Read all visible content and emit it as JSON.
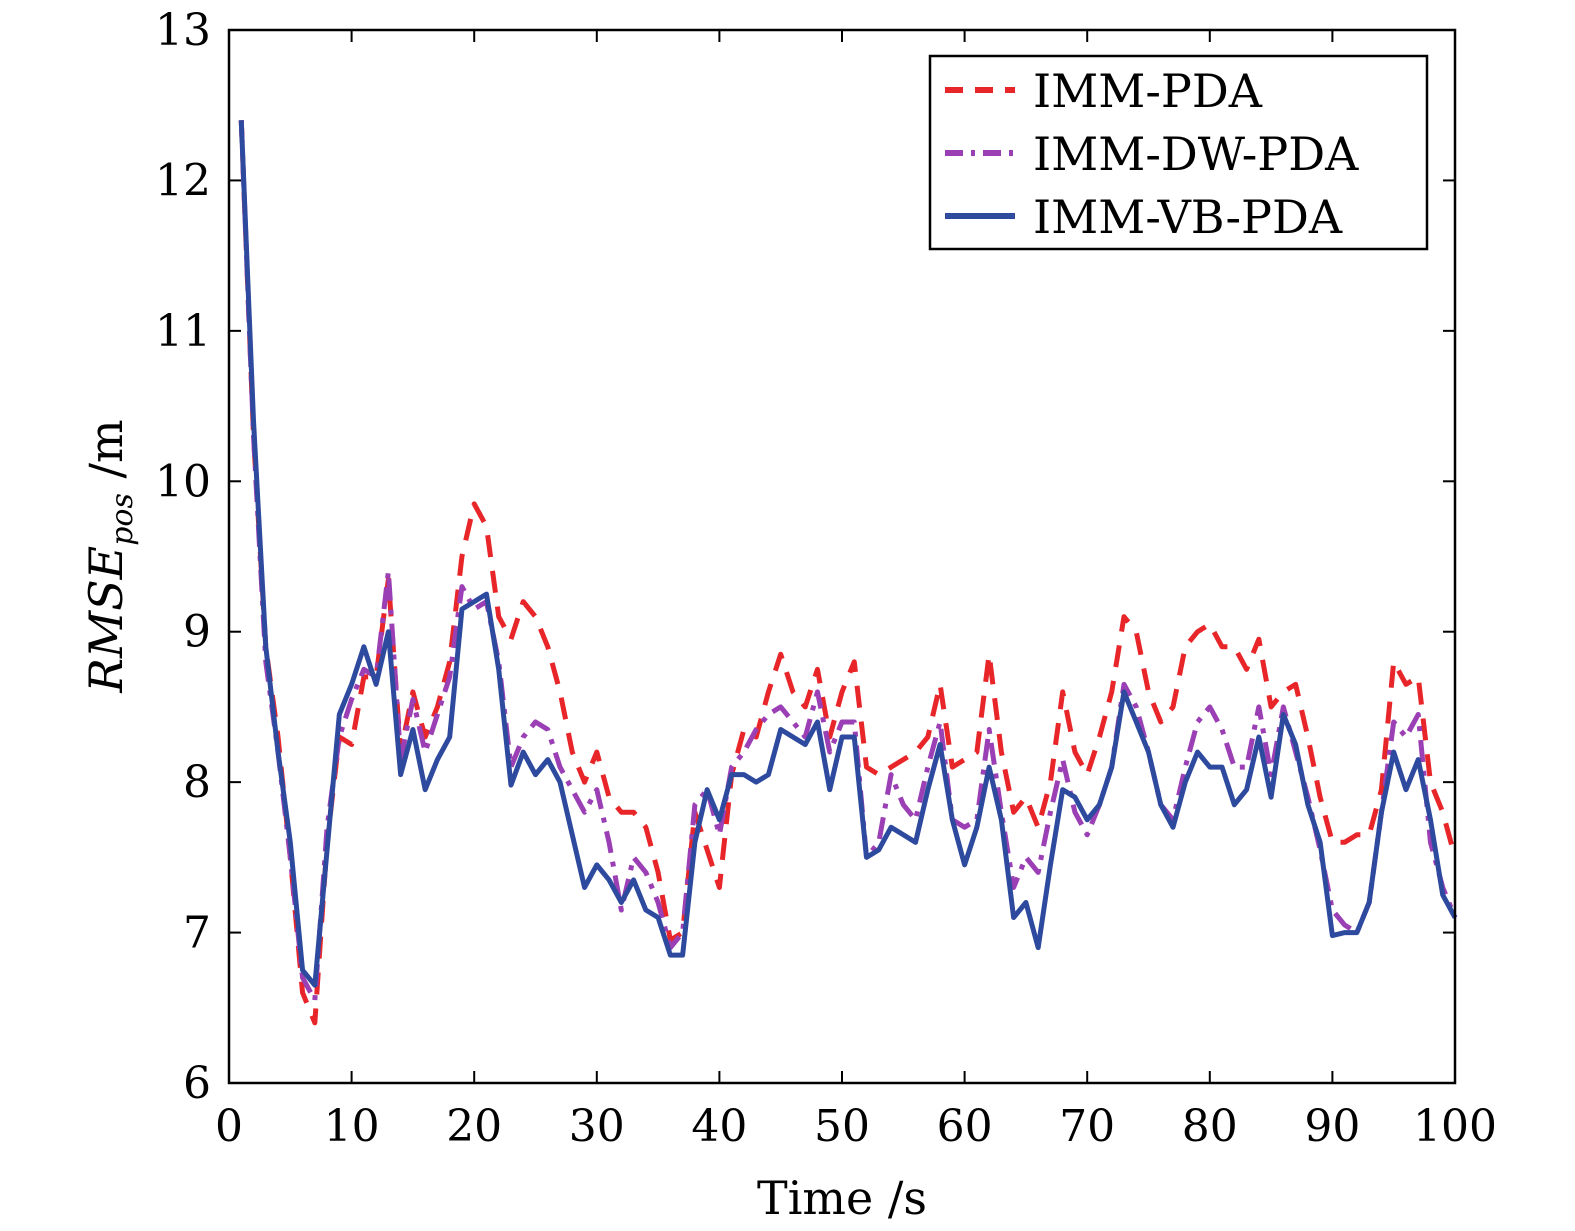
{
  "chart_data": {
    "type": "line",
    "xlabel": "Time /s",
    "ylabel_main": "RMSE",
    "ylabel_sub": "pos",
    "ylabel_unit": " /m",
    "xlim": [
      0,
      100
    ],
    "ylim": [
      6,
      13
    ],
    "xticks": [
      0,
      10,
      20,
      30,
      40,
      50,
      60,
      70,
      80,
      90,
      100
    ],
    "yticks": [
      6,
      7,
      8,
      9,
      10,
      11,
      12,
      13
    ],
    "grid": false,
    "legend_position": "top-right",
    "series": [
      {
        "name": "IMM-PDA",
        "color": "#e8262a",
        "style": "dashed",
        "x": [
          1,
          2,
          3,
          4,
          5,
          6,
          7,
          8,
          9,
          10,
          11,
          12,
          13,
          14,
          15,
          16,
          17,
          18,
          19,
          20,
          21,
          22,
          23,
          24,
          25,
          26,
          27,
          28,
          29,
          30,
          31,
          32,
          33,
          34,
          35,
          36,
          37,
          38,
          39,
          40,
          41,
          42,
          43,
          44,
          45,
          46,
          47,
          48,
          49,
          50,
          51,
          52,
          53,
          54,
          55,
          56,
          57,
          58,
          59,
          60,
          61,
          62,
          63,
          64,
          65,
          66,
          67,
          68,
          69,
          70,
          71,
          72,
          73,
          74,
          75,
          76,
          77,
          78,
          79,
          80,
          81,
          82,
          83,
          84,
          85,
          86,
          87,
          88,
          89,
          90,
          91,
          92,
          93,
          94,
          95,
          96,
          97,
          98,
          99,
          100
        ],
        "y": [
          12.4,
          10.3,
          8.9,
          8.3,
          7.5,
          6.6,
          6.4,
          7.6,
          8.3,
          8.25,
          8.7,
          8.7,
          9.35,
          8.2,
          8.6,
          8.3,
          8.5,
          8.8,
          9.5,
          9.85,
          9.7,
          9.1,
          8.95,
          9.2,
          9.1,
          8.9,
          8.6,
          8.2,
          8.0,
          8.2,
          7.9,
          7.8,
          7.8,
          7.7,
          7.4,
          6.95,
          7.0,
          7.8,
          7.55,
          7.3,
          8.05,
          8.35,
          8.3,
          8.6,
          8.85,
          8.6,
          8.5,
          8.75,
          8.3,
          8.6,
          8.8,
          8.1,
          8.05,
          8.1,
          8.15,
          8.2,
          8.3,
          8.65,
          8.1,
          8.15,
          8.2,
          8.85,
          8.2,
          7.8,
          7.9,
          7.7,
          8.0,
          8.6,
          8.2,
          8.05,
          8.3,
          8.6,
          9.1,
          9.0,
          8.6,
          8.4,
          8.5,
          8.9,
          9.0,
          9.05,
          8.9,
          8.9,
          8.75,
          8.95,
          8.5,
          8.6,
          8.65,
          8.3,
          7.9,
          7.6,
          7.6,
          7.65,
          7.65,
          7.95,
          8.8,
          8.65,
          8.7,
          8.0,
          7.8,
          7.5
        ]
      },
      {
        "name": "IMM-DW-PDA",
        "color": "#9b3fb5",
        "style": "dashdot",
        "x": [
          1,
          2,
          3,
          4,
          5,
          6,
          7,
          8,
          9,
          10,
          11,
          12,
          13,
          14,
          15,
          16,
          17,
          18,
          19,
          20,
          21,
          22,
          23,
          24,
          25,
          26,
          27,
          28,
          29,
          30,
          31,
          32,
          33,
          34,
          35,
          36,
          37,
          38,
          39,
          40,
          41,
          42,
          43,
          44,
          45,
          46,
          47,
          48,
          49,
          50,
          51,
          52,
          53,
          54,
          55,
          56,
          57,
          58,
          59,
          60,
          61,
          62,
          63,
          64,
          65,
          66,
          67,
          68,
          69,
          70,
          71,
          72,
          73,
          74,
          75,
          76,
          77,
          78,
          79,
          80,
          81,
          82,
          83,
          84,
          85,
          86,
          87,
          88,
          89,
          90,
          91,
          92,
          93,
          94,
          95,
          96,
          97,
          98,
          99,
          100
        ],
        "y": [
          12.4,
          10.3,
          8.8,
          8.2,
          7.5,
          6.7,
          6.55,
          7.7,
          8.3,
          8.55,
          8.75,
          8.7,
          9.4,
          8.15,
          8.55,
          8.2,
          8.45,
          8.7,
          9.3,
          9.15,
          9.2,
          8.8,
          8.1,
          8.3,
          8.4,
          8.35,
          8.1,
          7.95,
          7.8,
          7.95,
          7.6,
          7.15,
          7.5,
          7.4,
          7.2,
          6.9,
          7.0,
          7.85,
          7.95,
          7.65,
          8.1,
          8.2,
          8.35,
          8.45,
          8.5,
          8.4,
          8.3,
          8.6,
          8.2,
          8.4,
          8.4,
          7.5,
          7.6,
          8.05,
          7.85,
          7.75,
          8.1,
          8.4,
          7.75,
          7.7,
          7.75,
          8.35,
          7.8,
          7.3,
          7.5,
          7.4,
          7.8,
          8.15,
          7.8,
          7.65,
          7.85,
          8.1,
          8.65,
          8.5,
          8.2,
          7.85,
          7.75,
          8.1,
          8.4,
          8.5,
          8.35,
          8.1,
          8.1,
          8.5,
          8.05,
          8.5,
          8.2,
          7.9,
          7.55,
          7.15,
          7.05,
          7.0,
          7.2,
          7.8,
          8.4,
          8.3,
          8.45,
          7.6,
          7.3,
          7.1
        ]
      },
      {
        "name": "IMM-VB-PDA",
        "color": "#2e4a9e",
        "style": "solid",
        "x": [
          1,
          2,
          3,
          4,
          5,
          6,
          7,
          8,
          9,
          10,
          11,
          12,
          13,
          14,
          15,
          16,
          17,
          18,
          19,
          20,
          21,
          22,
          23,
          24,
          25,
          26,
          27,
          28,
          29,
          30,
          31,
          32,
          33,
          34,
          35,
          36,
          37,
          38,
          39,
          40,
          41,
          42,
          43,
          44,
          45,
          46,
          47,
          48,
          49,
          50,
          51,
          52,
          53,
          54,
          55,
          56,
          57,
          58,
          59,
          60,
          61,
          62,
          63,
          64,
          65,
          66,
          67,
          68,
          69,
          70,
          71,
          72,
          73,
          74,
          75,
          76,
          77,
          78,
          79,
          80,
          81,
          82,
          83,
          84,
          85,
          86,
          87,
          88,
          89,
          90,
          91,
          92,
          93,
          94,
          95,
          96,
          97,
          98,
          99,
          100
        ],
        "y": [
          12.4,
          10.4,
          8.9,
          8.2,
          7.6,
          6.75,
          6.65,
          7.55,
          8.45,
          8.65,
          8.9,
          8.65,
          9.0,
          8.05,
          8.35,
          7.95,
          8.15,
          8.3,
          9.15,
          9.2,
          9.25,
          8.75,
          7.98,
          8.2,
          8.05,
          8.15,
          8.0,
          7.65,
          7.3,
          7.45,
          7.35,
          7.2,
          7.35,
          7.15,
          7.1,
          6.85,
          6.85,
          7.6,
          7.95,
          7.75,
          8.05,
          8.05,
          8.0,
          8.05,
          8.35,
          8.3,
          8.25,
          8.4,
          7.95,
          8.3,
          8.3,
          7.5,
          7.55,
          7.7,
          7.65,
          7.6,
          7.95,
          8.25,
          7.75,
          7.45,
          7.7,
          8.1,
          7.75,
          7.1,
          7.2,
          6.9,
          7.45,
          7.95,
          7.9,
          7.75,
          7.85,
          8.1,
          8.6,
          8.4,
          8.2,
          7.85,
          7.7,
          8.0,
          8.2,
          8.1,
          8.1,
          7.85,
          7.95,
          8.3,
          7.9,
          8.45,
          8.25,
          7.85,
          7.6,
          6.98,
          7.0,
          7.0,
          7.2,
          7.8,
          8.2,
          7.95,
          8.15,
          7.75,
          7.25,
          7.1
        ]
      }
    ]
  }
}
